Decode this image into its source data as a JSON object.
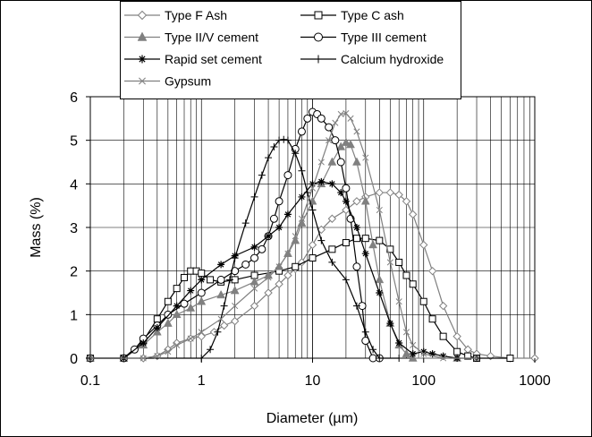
{
  "chart_data": {
    "type": "line",
    "xlabel": "Diameter (µm)",
    "ylabel": "Mass (%)",
    "x_scale": "log",
    "xlim": [
      0.1,
      1000
    ],
    "ylim": [
      0,
      6
    ],
    "x_ticks": [
      0.1,
      1,
      10,
      100,
      1000
    ],
    "x_tick_labels": [
      "0.1",
      "1",
      "10",
      "100",
      "1000"
    ],
    "y_ticks": [
      0,
      1,
      2,
      3,
      4,
      5,
      6
    ],
    "y_tick_labels": [
      "0",
      "1",
      "2",
      "3",
      "4",
      "5",
      "6"
    ],
    "grid": {
      "vertical_minor_log": true,
      "horizontal": true
    },
    "legend_position": "top-left, overlapping plot area",
    "series": [
      {
        "name": "Type F Ash",
        "color": "#808080",
        "marker": "diamond-open",
        "points": [
          [
            0.1,
            0
          ],
          [
            0.3,
            0
          ],
          [
            0.4,
            0.05
          ],
          [
            0.5,
            0.2
          ],
          [
            0.6,
            0.35
          ],
          [
            0.8,
            0.45
          ],
          [
            1,
            0.5
          ],
          [
            1.3,
            0.6
          ],
          [
            1.6,
            0.75
          ],
          [
            2,
            0.85
          ],
          [
            3,
            1.2
          ],
          [
            4,
            1.5
          ],
          [
            5,
            1.7
          ],
          [
            6,
            1.9
          ],
          [
            7,
            2.05
          ],
          [
            8,
            2.2
          ],
          [
            10,
            2.6
          ],
          [
            12,
            2.95
          ],
          [
            15,
            3.2
          ],
          [
            20,
            3.4
          ],
          [
            25,
            3.6
          ],
          [
            30,
            3.7
          ],
          [
            40,
            3.8
          ],
          [
            50,
            3.8
          ],
          [
            60,
            3.75
          ],
          [
            70,
            3.6
          ],
          [
            80,
            3.3
          ],
          [
            100,
            2.6
          ],
          [
            120,
            2.0
          ],
          [
            150,
            1.2
          ],
          [
            200,
            0.5
          ],
          [
            250,
            0.2
          ],
          [
            300,
            0.1
          ],
          [
            400,
            0.05
          ],
          [
            600,
            0
          ],
          [
            1000,
            0
          ]
        ]
      },
      {
        "name": "Type C ash",
        "color": "#000000",
        "marker": "square-open",
        "points": [
          [
            0.1,
            0
          ],
          [
            0.2,
            0
          ],
          [
            0.3,
            0.4
          ],
          [
            0.4,
            0.9
          ],
          [
            0.5,
            1.3
          ],
          [
            0.6,
            1.6
          ],
          [
            0.7,
            1.85
          ],
          [
            0.8,
            2.0
          ],
          [
            0.9,
            2.0
          ],
          [
            1,
            1.95
          ],
          [
            1.2,
            1.8
          ],
          [
            1.5,
            1.75
          ],
          [
            2,
            1.8
          ],
          [
            3,
            1.9
          ],
          [
            5,
            2.0
          ],
          [
            7,
            2.1
          ],
          [
            10,
            2.3
          ],
          [
            15,
            2.5
          ],
          [
            20,
            2.65
          ],
          [
            25,
            2.75
          ],
          [
            30,
            2.75
          ],
          [
            40,
            2.7
          ],
          [
            50,
            2.5
          ],
          [
            60,
            2.2
          ],
          [
            70,
            1.9
          ],
          [
            80,
            1.7
          ],
          [
            100,
            1.3
          ],
          [
            120,
            0.9
          ],
          [
            150,
            0.5
          ],
          [
            200,
            0.15
          ],
          [
            250,
            0.05
          ],
          [
            300,
            0
          ],
          [
            600,
            0
          ]
        ]
      },
      {
        "name": "Type II/V cement",
        "color": "#808080",
        "marker": "triangle-filled",
        "points": [
          [
            0.1,
            0
          ],
          [
            0.2,
            0
          ],
          [
            0.3,
            0.3
          ],
          [
            0.4,
            0.6
          ],
          [
            0.5,
            0.8
          ],
          [
            0.6,
            1.0
          ],
          [
            0.8,
            1.15
          ],
          [
            1,
            1.3
          ],
          [
            1.5,
            1.45
          ],
          [
            2,
            1.55
          ],
          [
            3,
            1.75
          ],
          [
            4,
            1.9
          ],
          [
            5,
            2.1
          ],
          [
            6,
            2.4
          ],
          [
            7,
            2.7
          ],
          [
            8,
            3.1
          ],
          [
            10,
            3.6
          ],
          [
            12,
            4.0
          ],
          [
            15,
            4.5
          ],
          [
            18,
            4.85
          ],
          [
            20,
            4.95
          ],
          [
            22,
            4.9
          ],
          [
            25,
            4.5
          ],
          [
            30,
            3.6
          ],
          [
            35,
            2.6
          ],
          [
            40,
            1.8
          ],
          [
            50,
            0.8
          ],
          [
            60,
            0.3
          ],
          [
            70,
            0.1
          ],
          [
            80,
            0
          ],
          [
            200,
            0
          ]
        ]
      },
      {
        "name": "Type III cement",
        "color": "#000000",
        "marker": "circle-open",
        "points": [
          [
            0.1,
            0
          ],
          [
            0.2,
            0
          ],
          [
            0.25,
            0.2
          ],
          [
            0.3,
            0.45
          ],
          [
            0.4,
            0.75
          ],
          [
            0.5,
            1.0
          ],
          [
            0.7,
            1.25
          ],
          [
            1,
            1.5
          ],
          [
            1.5,
            1.8
          ],
          [
            2,
            2.0
          ],
          [
            2.5,
            2.15
          ],
          [
            3,
            2.3
          ],
          [
            3.5,
            2.5
          ],
          [
            4,
            2.8
          ],
          [
            4.5,
            3.2
          ],
          [
            5,
            3.6
          ],
          [
            6,
            4.2
          ],
          [
            7,
            4.8
          ],
          [
            8,
            5.2
          ],
          [
            9,
            5.5
          ],
          [
            10,
            5.65
          ],
          [
            11,
            5.6
          ],
          [
            12,
            5.5
          ],
          [
            14,
            5.3
          ],
          [
            16,
            5.0
          ],
          [
            18,
            4.5
          ],
          [
            20,
            3.9
          ],
          [
            22,
            3.2
          ],
          [
            25,
            2.1
          ],
          [
            28,
            1.2
          ],
          [
            30,
            0.4
          ],
          [
            35,
            0
          ],
          [
            40,
            0
          ]
        ]
      },
      {
        "name": "Rapid set cement",
        "color": "#000000",
        "marker": "star",
        "points": [
          [
            0.1,
            0
          ],
          [
            0.2,
            0
          ],
          [
            0.3,
            0.35
          ],
          [
            0.4,
            0.7
          ],
          [
            0.6,
            1.2
          ],
          [
            0.8,
            1.55
          ],
          [
            1,
            1.8
          ],
          [
            1.5,
            2.15
          ],
          [
            2,
            2.35
          ],
          [
            3,
            2.55
          ],
          [
            4,
            2.8
          ],
          [
            5,
            3.0
          ],
          [
            6,
            3.3
          ],
          [
            8,
            3.7
          ],
          [
            10,
            4.0
          ],
          [
            12,
            4.05
          ],
          [
            15,
            4.0
          ],
          [
            18,
            3.8
          ],
          [
            20,
            3.6
          ],
          [
            25,
            3.0
          ],
          [
            30,
            2.4
          ],
          [
            40,
            1.5
          ],
          [
            50,
            0.8
          ],
          [
            60,
            0.35
          ],
          [
            80,
            0.1
          ],
          [
            100,
            0.15
          ],
          [
            120,
            0.1
          ],
          [
            150,
            0.05
          ],
          [
            200,
            0
          ],
          [
            300,
            0
          ]
        ]
      },
      {
        "name": "Calcium hydroxide",
        "color": "#000000",
        "marker": "plus",
        "points": [
          [
            0.1,
            0
          ],
          [
            1,
            0
          ],
          [
            1.2,
            0.2
          ],
          [
            1.4,
            0.6
          ],
          [
            1.6,
            1.2
          ],
          [
            1.8,
            1.8
          ],
          [
            2,
            2.3
          ],
          [
            2.5,
            3.1
          ],
          [
            3,
            3.7
          ],
          [
            3.5,
            4.2
          ],
          [
            4,
            4.6
          ],
          [
            4.5,
            4.85
          ],
          [
            5,
            5.0
          ],
          [
            5.5,
            5.02
          ],
          [
            6,
            5.0
          ],
          [
            7,
            4.7
          ],
          [
            8,
            4.3
          ],
          [
            9,
            3.8
          ],
          [
            10,
            3.4
          ],
          [
            12,
            2.7
          ],
          [
            15,
            2.2
          ],
          [
            20,
            1.8
          ],
          [
            25,
            1.2
          ],
          [
            30,
            0.6
          ],
          [
            35,
            0.2
          ],
          [
            40,
            0
          ],
          [
            60,
            0
          ]
        ]
      },
      {
        "name": "Gypsum",
        "color": "#808080",
        "marker": "x",
        "points": [
          [
            0.1,
            0
          ],
          [
            0.3,
            0
          ],
          [
            0.4,
            0.05
          ],
          [
            0.5,
            0.15
          ],
          [
            0.6,
            0.3
          ],
          [
            0.8,
            0.45
          ],
          [
            1,
            0.6
          ],
          [
            1.5,
            0.9
          ],
          [
            2,
            1.2
          ],
          [
            3,
            1.6
          ],
          [
            4,
            1.85
          ],
          [
            5,
            2.1
          ],
          [
            6,
            2.4
          ],
          [
            7,
            2.8
          ],
          [
            8,
            3.2
          ],
          [
            10,
            3.9
          ],
          [
            12,
            4.5
          ],
          [
            14,
            5.0
          ],
          [
            16,
            5.4
          ],
          [
            18,
            5.6
          ],
          [
            20,
            5.62
          ],
          [
            22,
            5.5
          ],
          [
            25,
            5.2
          ],
          [
            30,
            4.6
          ],
          [
            40,
            3.4
          ],
          [
            50,
            2.2
          ],
          [
            60,
            1.3
          ],
          [
            70,
            0.6
          ],
          [
            80,
            0.3
          ],
          [
            100,
            0.1
          ],
          [
            150,
            0
          ],
          [
            300,
            0
          ]
        ]
      }
    ]
  }
}
